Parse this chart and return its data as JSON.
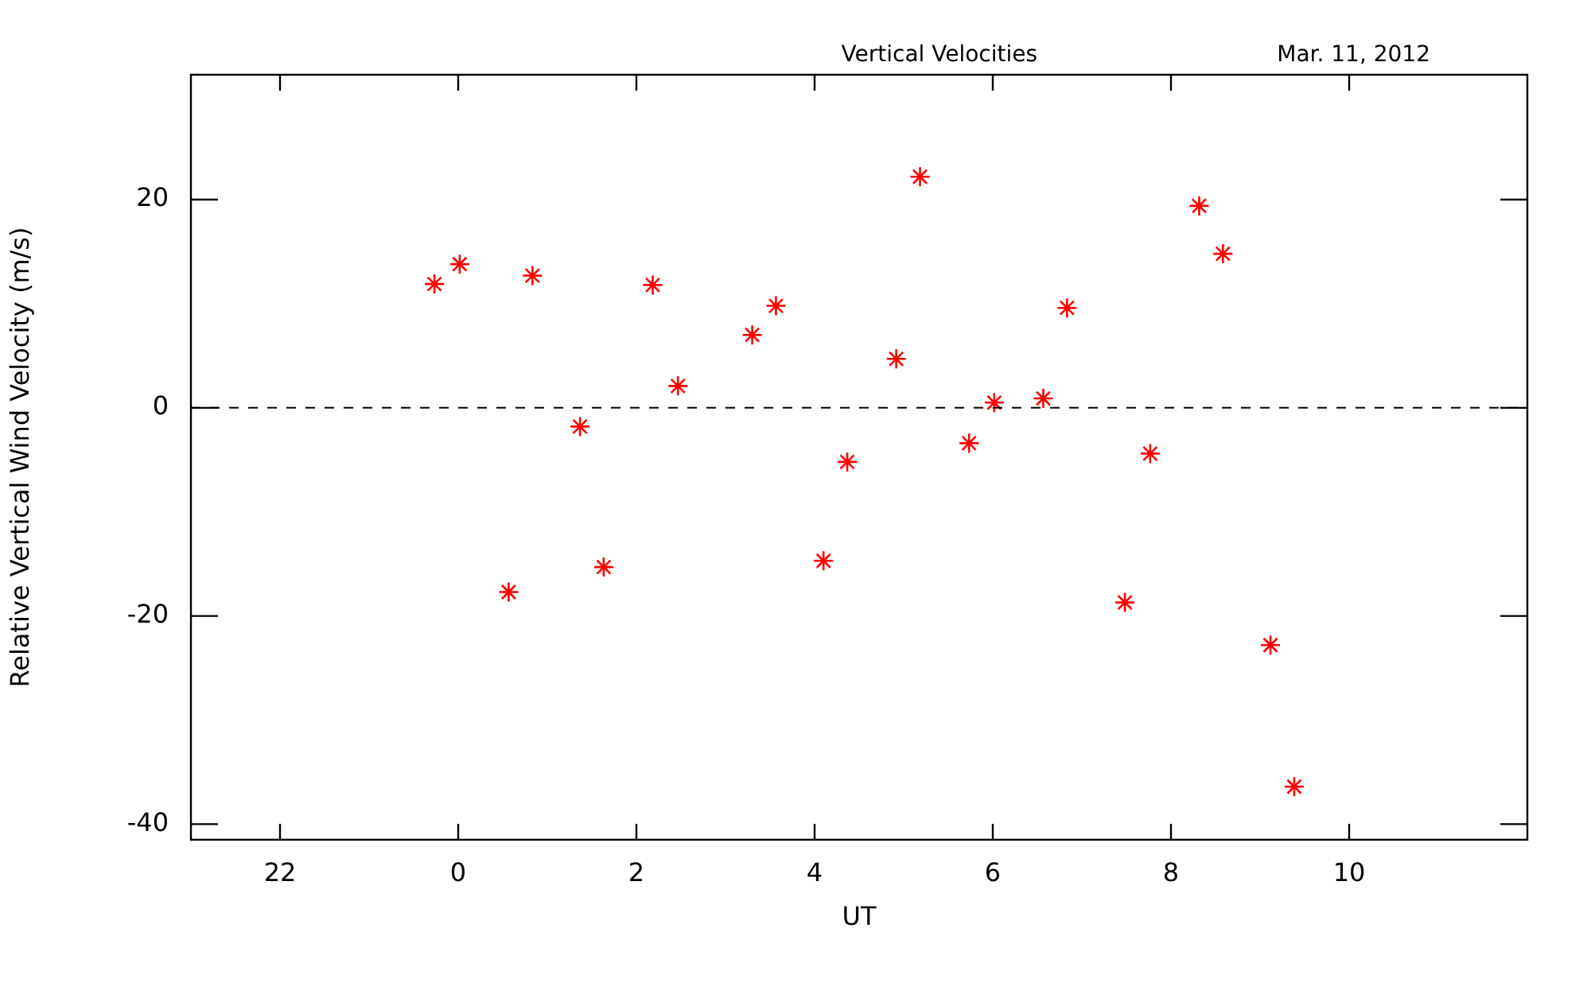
{
  "chart_data": {
    "type": "scatter",
    "title": "Vertical Velocities",
    "subtitle": "Mar. 11, 2012",
    "xlabel": "UT",
    "ylabel": "Relative Vertical Wind Velocity (m/s)",
    "x": [
      "2012-03-10T23:44",
      "2012-03-11T00:01",
      "2012-03-11T00:34",
      "2012-03-11T00:50",
      "2012-03-11T01:22",
      "2012-03-11T01:38",
      "2012-03-11T02:11",
      "2012-03-11T02:28",
      "2012-03-11T03:18",
      "2012-03-11T03:34",
      "2012-03-11T04:06",
      "2012-03-11T04:22",
      "2012-03-11T04:55",
      "2012-03-11T05:11",
      "2012-03-11T05:44",
      "2012-03-11T06:01",
      "2012-03-11T06:34",
      "2012-03-11T06:50",
      "2012-03-11T07:29",
      "2012-03-11T07:46",
      "2012-03-11T08:19",
      "2012-03-11T08:35",
      "2012-03-11T09:07",
      "2012-03-11T09:23"
    ],
    "series": [
      {
        "color": "#ff0000",
        "values": [
          11.9,
          13.8,
          -17.7,
          12.7,
          -1.8,
          -15.3,
          11.8,
          2.1,
          7.0,
          9.8,
          -14.7,
          -5.2,
          4.7,
          22.2,
          -3.4,
          0.5,
          0.9,
          9.6,
          -18.7,
          -4.4,
          19.4,
          14.8,
          -22.8,
          -36.4
        ]
      }
    ],
    "xlim": [
      "2012-03-10T21:00",
      "2012-03-11T12:00"
    ],
    "xticks": [
      {
        "value": "2012-03-10T22:00",
        "label": "22"
      },
      {
        "value": "2012-03-11T00:00",
        "label": "0"
      },
      {
        "value": "2012-03-11T02:00",
        "label": "2"
      },
      {
        "value": "2012-03-11T04:00",
        "label": "4"
      },
      {
        "value": "2012-03-11T06:00",
        "label": "6"
      },
      {
        "value": "2012-03-11T08:00",
        "label": "8"
      },
      {
        "value": "2012-03-11T10:00",
        "label": "10"
      }
    ],
    "ylim": [
      -41.5,
      32
    ],
    "yticks": [
      -40,
      -20,
      0,
      20
    ],
    "ref_lines": [
      {
        "axis": "y",
        "value": 0,
        "color": "#000000",
        "line_style": "dashed"
      }
    ],
    "marker": "cross",
    "grid": false,
    "legend": false
  }
}
